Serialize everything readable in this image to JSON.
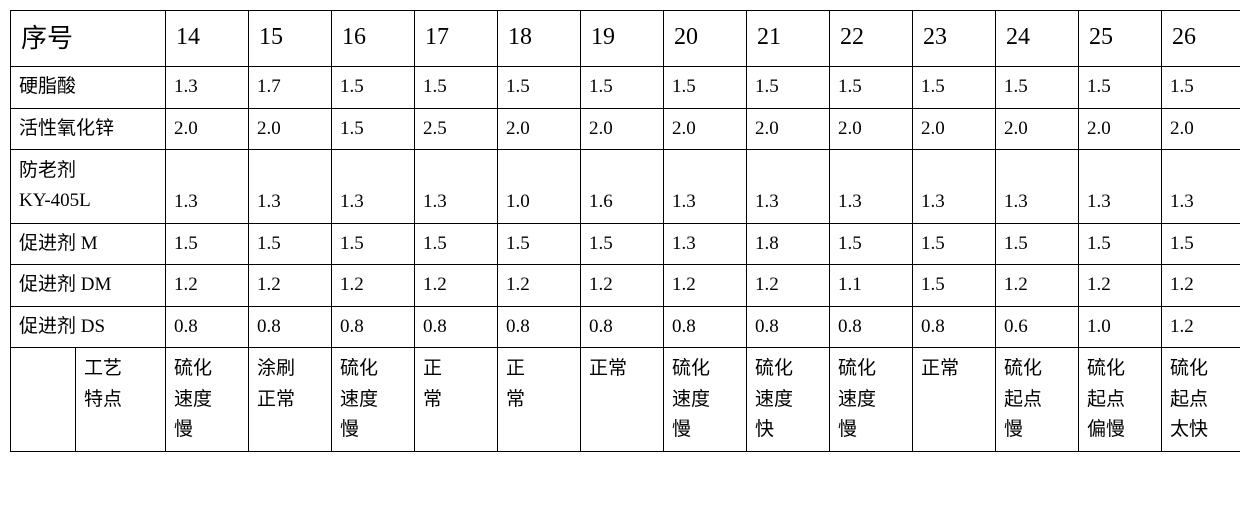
{
  "table": {
    "header": {
      "label": "序号",
      "cols": [
        "14",
        "15",
        "16",
        "17",
        "18",
        "19",
        "20",
        "21",
        "22",
        "23",
        "24",
        "25",
        "26"
      ]
    },
    "rows": [
      {
        "label": "硬脂酸",
        "values": [
          "1.3",
          "1.7",
          "1.5",
          "1.5",
          "1.5",
          "1.5",
          "1.5",
          "1.5",
          "1.5",
          "1.5",
          "1.5",
          "1.5",
          "1.5"
        ]
      },
      {
        "label": "活性氧化锌",
        "values": [
          "2.0",
          "2.0",
          "1.5",
          "2.5",
          "2.0",
          "2.0",
          "2.0",
          "2.0",
          "2.0",
          "2.0",
          "2.0",
          "2.0",
          "2.0"
        ]
      },
      {
        "label": "防老剂\nKY-405L",
        "values": [
          "1.3",
          "1.3",
          "1.3",
          "1.3",
          "1.0",
          "1.6",
          "1.3",
          "1.3",
          "1.3",
          "1.3",
          "1.3",
          "1.3",
          "1.3"
        ]
      },
      {
        "label": "促进剂 M",
        "values": [
          "1.5",
          "1.5",
          "1.5",
          "1.5",
          "1.5",
          "1.5",
          "1.3",
          "1.8",
          "1.5",
          "1.5",
          "1.5",
          "1.5",
          "1.5"
        ]
      },
      {
        "label": "促进剂 DM",
        "values": [
          "1.2",
          "1.2",
          "1.2",
          "1.2",
          "1.2",
          "1.2",
          "1.2",
          "1.2",
          "1.1",
          "1.5",
          "1.2",
          "1.2",
          "1.2"
        ]
      },
      {
        "label": "促进剂 DS",
        "values": [
          "0.8",
          "0.8",
          "0.8",
          "0.8",
          "0.8",
          "0.8",
          "0.8",
          "0.8",
          "0.8",
          "0.8",
          "0.6",
          "1.0",
          "1.2"
        ]
      }
    ],
    "footer": {
      "blank": "",
      "label": "工艺\n特点",
      "values": [
        "硫化\n速度\n慢",
        "涂刷\n正常",
        "硫化\n速度\n慢",
        "正\n常",
        "正\n常",
        "正常",
        "硫化\n速度\n慢",
        "硫化\n速度\n快",
        "硫化\n速度\n慢",
        "正常",
        "硫化\n起点\n慢",
        "硫化\n起点\n偏慢",
        "硫化\n起点\n太快"
      ]
    }
  },
  "style": {
    "border_color": "#000000",
    "background_color": "#ffffff",
    "text_color": "#000000",
    "font_family": "SimSun",
    "header_fontsize": 26,
    "col_header_fontsize": 24,
    "data_fontsize": 19,
    "border_width": 1.5,
    "col_first_width": 155,
    "col_data_width": 83
  }
}
